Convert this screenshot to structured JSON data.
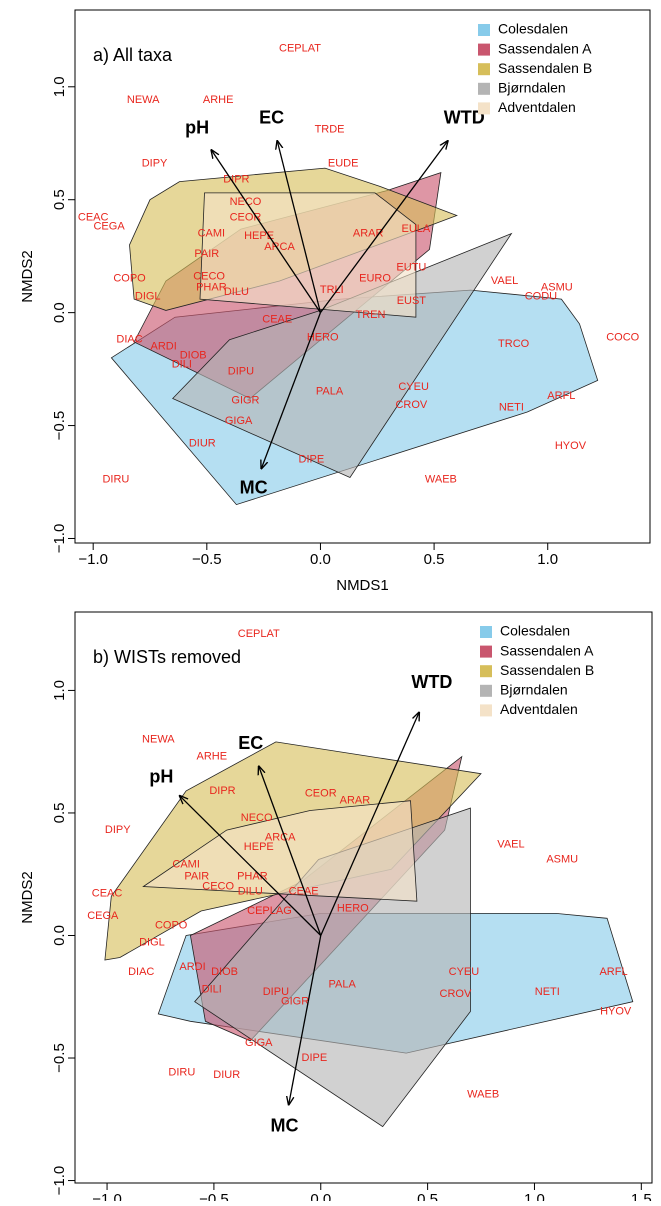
{
  "chart_data": [
    {
      "type": "scatter",
      "title": "a) All taxa",
      "x_label": "NMDS1",
      "y_label": "NMDS2",
      "xlim": [
        -1.08,
        1.45
      ],
      "ylim": [
        -1.02,
        1.34
      ],
      "xticks": [
        {
          "value": -1,
          "label": "−1.0"
        },
        {
          "value": -0.5,
          "label": "−0.5"
        },
        {
          "value": 0,
          "label": "0.0"
        },
        {
          "value": 0.5,
          "label": "0.5"
        },
        {
          "value": 1,
          "label": "1.0"
        }
      ],
      "yticks": [
        {
          "value": -1,
          "label": "−1.0"
        },
        {
          "value": -0.5,
          "label": "−0.5"
        },
        {
          "value": 0,
          "label": "0.0"
        },
        {
          "value": 0.5,
          "label": "0.5"
        },
        {
          "value": 1,
          "label": "1.0"
        }
      ],
      "legend": "top right",
      "series": [
        {
          "name": "Colesdalen",
          "color": "#87cbea",
          "x": [
            -0.92,
            -0.64,
            0.09,
            0.66,
            1.06,
            1.14,
            1.22,
            0.91,
            -0.37
          ],
          "values": [
            -0.2,
            -0.02,
            0.06,
            0.1,
            0.06,
            -0.05,
            -0.3,
            -0.44,
            -0.85
          ]
        },
        {
          "name": "Sassendalen A",
          "color": "#c9566e",
          "x": [
            -0.82,
            -0.68,
            -0.35,
            0.29,
            0.53,
            0.48,
            -0.31
          ],
          "values": [
            -0.13,
            0.14,
            0.37,
            0.54,
            0.62,
            0.28,
            -0.38
          ]
        },
        {
          "name": "Sassendalen B",
          "color": "#d6be5a",
          "x": [
            -0.84,
            -0.75,
            -0.62,
            0.02,
            0.26,
            0.6,
            0.44,
            -0.18,
            -0.68,
            -0.82
          ],
          "values": [
            0.3,
            0.5,
            0.58,
            0.64,
            0.56,
            0.43,
            0.37,
            0.14,
            0.01,
            0.06
          ]
        },
        {
          "name": "Bjørndalen",
          "color": "#b4b4b4",
          "x": [
            -0.65,
            -0.4,
            0,
            0.84,
            0.13
          ],
          "values": [
            -0.38,
            -0.12,
            0.01,
            0.35,
            -0.73
          ]
        },
        {
          "name": "Adventdalen",
          "color": "#f4e2c8",
          "x": [
            -0.51,
            0.24,
            0.42,
            0.42,
            -0.53
          ],
          "values": [
            0.53,
            0.53,
            0.39,
            -0.02,
            0.06
          ]
        }
      ],
      "species": {
        "labels": [
          "CEPLAT",
          "NEWA",
          "ARHE",
          "TRDE",
          "DIPY",
          "EUDE",
          "DIPR",
          "CEAC",
          "NECO",
          "CEGA",
          "CEOR",
          "CAMI",
          "HEPE",
          "ARAR",
          "EULA",
          "ARCA",
          "PAIR",
          "COPO",
          "CECO",
          "EUTU",
          "VAEL",
          "ASMU",
          "PHAR",
          "DILU",
          "TRLI",
          "EURO",
          "DIGL",
          "CODU",
          "EUST",
          "TREN",
          "COCO",
          "CEAE",
          "HERO",
          "DIAC",
          "ARDI",
          "TRCO",
          "DIOB",
          "DILI",
          "DIPU",
          "CYEU",
          "PALA",
          "ARFL",
          "GIGR",
          "CROV",
          "NETI",
          "GIGA",
          "HYOV",
          "DIUR",
          "DIPE",
          "DIRU",
          "WAEB"
        ],
        "x": [
          -0.09,
          -0.78,
          -0.45,
          0.04,
          -0.73,
          0.1,
          -0.37,
          -1.0,
          -0.33,
          -0.93,
          -0.33,
          -0.48,
          -0.27,
          0.21,
          0.42,
          -0.18,
          -0.5,
          -0.84,
          -0.49,
          0.4,
          0.81,
          1.04,
          -0.48,
          -0.37,
          0.05,
          0.24,
          -0.76,
          0.97,
          0.4,
          0.22,
          1.33,
          -0.19,
          0.01,
          -0.84,
          -0.69,
          0.85,
          -0.56,
          -0.61,
          -0.35,
          0.41,
          0.04,
          1.06,
          -0.33,
          0.4,
          0.84,
          -0.36,
          1.1,
          -0.52,
          -0.04,
          -0.9,
          0.53
        ],
        "y": [
          1.17,
          0.94,
          0.94,
          0.81,
          0.66,
          0.66,
          0.59,
          0.42,
          0.49,
          0.38,
          0.42,
          0.35,
          0.34,
          0.35,
          0.37,
          0.29,
          0.26,
          0.15,
          0.16,
          0.2,
          0.14,
          0.11,
          0.11,
          0.09,
          0.1,
          0.15,
          0.07,
          0.07,
          0.05,
          -0.01,
          -0.11,
          -0.03,
          -0.11,
          -0.12,
          -0.15,
          -0.14,
          -0.19,
          -0.23,
          -0.26,
          -0.33,
          -0.35,
          -0.37,
          -0.39,
          -0.41,
          -0.42,
          -0.48,
          -0.59,
          -0.58,
          -0.65,
          -0.74,
          -0.74
        ]
      },
      "vectors": {
        "labels": [
          "pH",
          "EC",
          "WTD",
          "MC"
        ],
        "x": [
          -0.48,
          -0.19,
          0.56,
          -0.26
        ],
        "y": [
          0.72,
          0.76,
          0.76,
          -0.69
        ]
      }
    },
    {
      "type": "scatter",
      "title": "b) WISTs removed",
      "x_label": "NMDS1",
      "y_label": "NMDS2",
      "xlim": [
        -1.15,
        1.55
      ],
      "ylim": [
        -1.01,
        1.32
      ],
      "xticks": [
        {
          "value": -1,
          "label": "−1.0"
        },
        {
          "value": -0.5,
          "label": "−0.5"
        },
        {
          "value": 0,
          "label": "0.0"
        },
        {
          "value": 0.5,
          "label": "0.5"
        },
        {
          "value": 1,
          "label": "1.0"
        },
        {
          "value": 1.5,
          "label": "1.5"
        }
      ],
      "yticks": [
        {
          "value": -1,
          "label": "−1.0"
        },
        {
          "value": -0.5,
          "label": "−0.5"
        },
        {
          "value": 0,
          "label": "0.0"
        },
        {
          "value": 0.5,
          "label": "0.5"
        },
        {
          "value": 1,
          "label": "1.0"
        }
      ],
      "legend": "top right",
      "series": [
        {
          "name": "Colesdalen",
          "color": "#87cbea",
          "x": [
            -0.76,
            -0.63,
            0,
            1.1,
            1.34,
            1.46,
            0.4,
            -0.61
          ],
          "values": [
            -0.32,
            0,
            0.09,
            0.09,
            0.07,
            -0.27,
            -0.48,
            -0.35
          ]
        },
        {
          "name": "Sassendalen A",
          "color": "#c9566e",
          "x": [
            -0.61,
            -0.09,
            0.66,
            0.58,
            -0.33,
            -0.54
          ],
          "values": [
            0,
            0.22,
            0.73,
            0.43,
            -0.43,
            -0.35
          ]
        },
        {
          "name": "Sassendalen B",
          "color": "#d6be5a",
          "x": [
            -1.01,
            -0.98,
            -0.63,
            -0.21,
            0.75,
            0.33,
            -0.56,
            -0.94
          ],
          "values": [
            -0.1,
            0.16,
            0.59,
            0.79,
            0.66,
            0.27,
            0.1,
            -0.09
          ]
        },
        {
          "name": "Bjørndalen",
          "color": "#b4b4b4",
          "x": [
            -0.59,
            -0.01,
            0.7,
            0.7,
            0.29
          ],
          "values": [
            -0.27,
            0.31,
            0.52,
            -0.31,
            -0.78
          ]
        },
        {
          "name": "Adventdalen",
          "color": "#f4e2c8",
          "x": [
            -0.83,
            -0.44,
            -0.05,
            0.42,
            0.45
          ],
          "values": [
            0.2,
            0.43,
            0.51,
            0.55,
            0.14
          ]
        }
      ],
      "species": {
        "labels": [
          "CEPLAT",
          "NEWA",
          "ARHE",
          "DIPR",
          "CEOR",
          "ARAR",
          "NECO",
          "DIPY",
          "ARCA",
          "HEPE",
          "VAEL",
          "ASMU",
          "CAMI",
          "PAIR",
          "PHAR",
          "CECO",
          "DILU",
          "CEAE",
          "CEAC",
          "CEGA",
          "CEPLAG",
          "HERO",
          "COPO",
          "DIGL",
          "DIAC",
          "ARDI",
          "DIOB",
          "CYEU",
          "ARFL",
          "DILI",
          "CROV",
          "NETI",
          "DIPU",
          "PALA",
          "GIGR",
          "HYOV",
          "GIGA",
          "DIPE",
          "DIRU",
          "DIUR",
          "WAEB"
        ],
        "x": [
          -0.29,
          -0.76,
          -0.51,
          -0.46,
          0.0,
          0.16,
          -0.3,
          -0.95,
          -0.19,
          -0.29,
          0.89,
          1.13,
          -0.63,
          -0.58,
          -0.32,
          -0.48,
          -0.33,
          -0.08,
          -1.0,
          -1.02,
          -0.24,
          0.15,
          -0.7,
          -0.79,
          -0.84,
          -0.6,
          -0.45,
          0.67,
          1.37,
          -0.51,
          0.63,
          1.06,
          -0.21,
          0.1,
          -0.12,
          1.38,
          -0.29,
          -0.03,
          -0.65,
          -0.44,
          0.76
        ],
        "y": [
          1.23,
          0.8,
          0.73,
          0.59,
          0.58,
          0.55,
          0.48,
          0.43,
          0.4,
          0.36,
          0.37,
          0.31,
          0.29,
          0.24,
          0.24,
          0.2,
          0.18,
          0.18,
          0.17,
          0.08,
          0.1,
          0.11,
          0.04,
          -0.03,
          -0.15,
          -0.13,
          -0.15,
          -0.15,
          -0.15,
          -0.22,
          -0.24,
          -0.23,
          -0.23,
          -0.2,
          -0.27,
          -0.31,
          -0.44,
          -0.5,
          -0.56,
          -0.57,
          -0.65
        ]
      },
      "vectors": {
        "labels": [
          "pH",
          "EC",
          "WTD",
          "MC"
        ],
        "x": [
          -0.66,
          -0.29,
          0.46,
          -0.15
        ],
        "y": [
          0.57,
          0.69,
          0.91,
          -0.69
        ]
      }
    }
  ]
}
